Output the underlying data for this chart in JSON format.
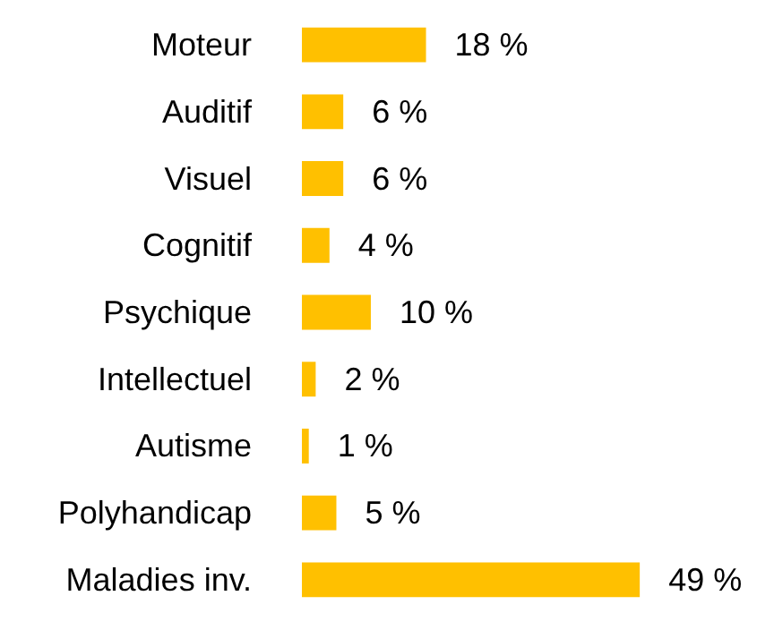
{
  "chart_data": {
    "type": "bar",
    "orientation": "horizontal",
    "categories": [
      "Moteur",
      "Auditif",
      "Visuel",
      "Cognitif",
      "Psychique",
      "Intellectuel",
      "Autisme",
      "Polyhandicap",
      "Maladies inv."
    ],
    "values": [
      18,
      6,
      6,
      4,
      10,
      2,
      1,
      5,
      49
    ],
    "value_labels": [
      "18 %",
      "6 %",
      "6 %",
      "4 %",
      "10 %",
      "2 %",
      "1 %",
      "5 %",
      "49 %"
    ],
    "color": "#ffc000",
    "grid": false
  }
}
